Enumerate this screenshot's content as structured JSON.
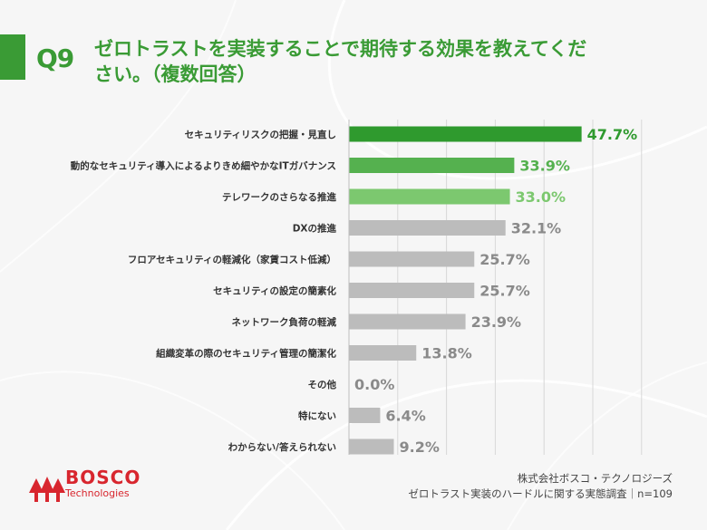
{
  "header": {
    "q_label": "Q9",
    "title_line1": "ゼロトラストを実装することで期待する効果を教えてくだ",
    "title_line2": "さい。（複数回答）"
  },
  "chart_data": {
    "type": "bar",
    "orientation": "horizontal",
    "categories": [
      "セキュリティリスクの把握・見直し",
      "動的なセキュリティ導入によるよりきめ細やかなITガバナンス",
      "テレワークのさらなる推進",
      "DXの推進",
      "フロアセキュリティの軽減化（家賃コスト低減）",
      "セキュリティの設定の簡素化",
      "ネットワーク負荷の軽減",
      "組織変革の際のセキュリティ管理の簡潔化",
      "その他",
      "特にない",
      "わからない/答えられない"
    ],
    "values": [
      47.7,
      33.9,
      33.0,
      32.1,
      25.7,
      25.7,
      23.9,
      13.8,
      0.0,
      6.4,
      9.2
    ],
    "value_labels": [
      "47.7%",
      "33.9%",
      "33.0%",
      "32.1%",
      "25.7%",
      "25.7%",
      "23.9%",
      "13.8%",
      "0.0%",
      "6.4%",
      "9.2%"
    ],
    "xlim": [
      0,
      60
    ],
    "grid": true,
    "colors": [
      "#2f9a2e",
      "#55b14f",
      "#7cc86f",
      "#bcbcbc",
      "#bcbcbc",
      "#bcbcbc",
      "#bcbcbc",
      "#bcbcbc",
      "#bcbcbc",
      "#bcbcbc",
      "#bcbcbc"
    ],
    "label_colors": [
      "#2f9a2e",
      "#55b14f",
      "#7cc86f",
      "#8a8a8a",
      "#8a8a8a",
      "#8a8a8a",
      "#8a8a8a",
      "#8a8a8a",
      "#8a8a8a",
      "#8a8a8a",
      "#8a8a8a"
    ]
  },
  "logo": {
    "main": "BOSCO",
    "sub": "Technologies"
  },
  "source": {
    "line1": "株式会社ボスコ・テクノロジーズ",
    "line2": "ゼロトラスト実装のハードルに関する実態調査｜n=109"
  }
}
